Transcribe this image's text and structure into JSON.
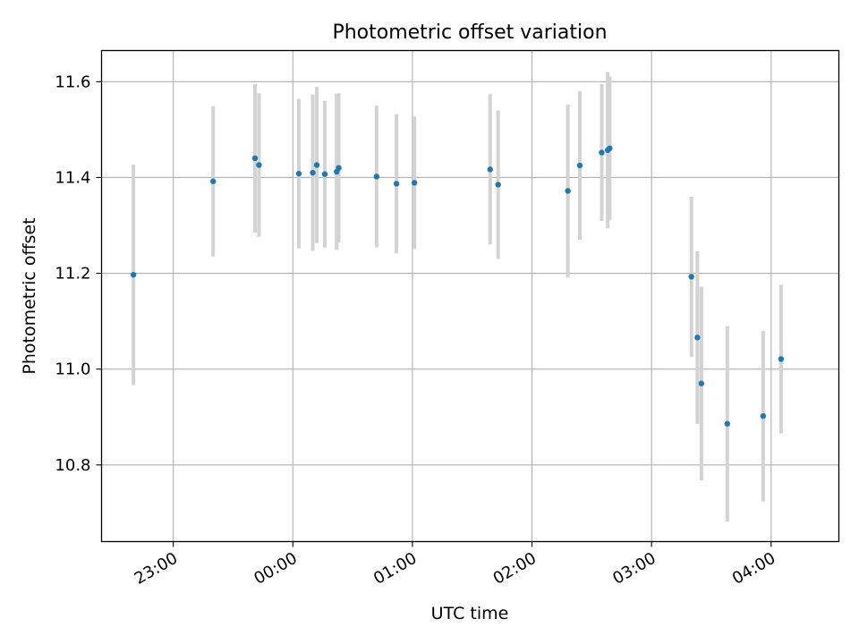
{
  "chart_data": {
    "type": "scatter",
    "title": "Photometric offset variation",
    "xlabel": "UTC time",
    "ylabel": "Photometric offset",
    "x_unit": "UTC time (HH:MM, spanning midnight)",
    "xlim": [
      "22:24",
      "04:34"
    ],
    "ylim": [
      10.64,
      11.665
    ],
    "x_ticks": [
      "23:00",
      "00:00",
      "01:00",
      "02:00",
      "03:00",
      "04:00"
    ],
    "y_ticks": [
      10.8,
      11.0,
      11.2,
      11.4,
      11.6
    ],
    "y_tick_labels": [
      "10.8",
      "11.0",
      "11.2",
      "11.4",
      "11.6"
    ],
    "grid": true,
    "x_tick_label_rotation": "30°",
    "marker_color": "#1f77b4",
    "errorbar_color": "#d3d3d3",
    "series": [
      {
        "points": [
          {
            "t": "22:40",
            "y": 11.197,
            "err": 0.23
          },
          {
            "t": "23:20",
            "y": 11.392,
            "err": 0.157
          },
          {
            "t": "23:41",
            "y": 11.44,
            "err": 0.155
          },
          {
            "t": "23:43",
            "y": 11.426,
            "err": 0.15
          },
          {
            "t": "00:03",
            "y": 11.408,
            "err": 0.156
          },
          {
            "t": "00:10",
            "y": 11.41,
            "err": 0.163
          },
          {
            "t": "00:12",
            "y": 11.426,
            "err": 0.163
          },
          {
            "t": "00:16",
            "y": 11.407,
            "err": 0.153
          },
          {
            "t": "00:22",
            "y": 11.412,
            "err": 0.163
          },
          {
            "t": "00:23",
            "y": 11.42,
            "err": 0.156
          },
          {
            "t": "00:42",
            "y": 11.402,
            "err": 0.148
          },
          {
            "t": "00:52",
            "y": 11.387,
            "err": 0.145
          },
          {
            "t": "01:01",
            "y": 11.389,
            "err": 0.138
          },
          {
            "t": "01:39",
            "y": 11.417,
            "err": 0.157
          },
          {
            "t": "01:43",
            "y": 11.385,
            "err": 0.155
          },
          {
            "t": "02:18",
            "y": 11.372,
            "err": 0.18
          },
          {
            "t": "02:24",
            "y": 11.425,
            "err": 0.155
          },
          {
            "t": "02:35",
            "y": 11.452,
            "err": 0.143
          },
          {
            "t": "02:38",
            "y": 11.457,
            "err": 0.163
          },
          {
            "t": "02:39",
            "y": 11.461,
            "err": 0.15
          },
          {
            "t": "03:20",
            "y": 11.193,
            "err": 0.167
          },
          {
            "t": "03:23",
            "y": 11.066,
            "err": 0.18
          },
          {
            "t": "03:25",
            "y": 10.97,
            "err": 0.202
          },
          {
            "t": "03:38",
            "y": 10.886,
            "err": 0.204
          },
          {
            "t": "03:56",
            "y": 10.902,
            "err": 0.178
          },
          {
            "t": "04:05",
            "y": 11.021,
            "err": 0.155
          }
        ]
      }
    ]
  }
}
